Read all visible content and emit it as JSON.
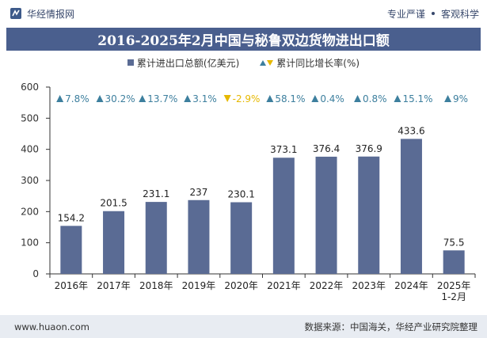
{
  "header": {
    "brand_name": "华经情报网",
    "tags": [
      "专业严谨",
      "客观科学"
    ]
  },
  "title": "2016-2025年2月中国与秘鲁双边货物进出口额",
  "legend": {
    "bars": "累计进出口总额(亿美元)",
    "growth": "累计同比增长率(%)"
  },
  "colors": {
    "bar": "#5a6b94",
    "up": "#3d7f9e",
    "down": "#e6b800",
    "title_bg": "#4a5f8e",
    "footer_bg": "#e8ecf2"
  },
  "chart_data": {
    "type": "bar",
    "title": "2016-2025年2月中国与秘鲁双边货物进出口额",
    "categories": [
      "2016年",
      "2017年",
      "2018年",
      "2019年",
      "2020年",
      "2021年",
      "2022年",
      "2023年",
      "2024年",
      "2025年\n1-2月"
    ],
    "series": [
      {
        "name": "累计进出口总额(亿美元)",
        "values": [
          154.2,
          201.5,
          231.1,
          237,
          230.1,
          373.1,
          376.4,
          376.9,
          433.6,
          75.5
        ],
        "labels": [
          "154.2",
          "201.5",
          "231.1",
          "237",
          "230.1",
          "373.1",
          "376.4",
          "376.9",
          "433.6",
          "75.5"
        ]
      },
      {
        "name": "累计同比增长率(%)",
        "values": [
          7.8,
          30.2,
          13.7,
          3.1,
          -2.9,
          58.1,
          0.4,
          0.8,
          15.1,
          9
        ],
        "labels": [
          "7.8%",
          "30.2%",
          "13.7%",
          "3.1%",
          "-2.9%",
          "58.1%",
          "0.4%",
          "0.8%",
          "15.1%",
          "9%"
        ]
      }
    ],
    "ylim": [
      0,
      600
    ],
    "yticks": [
      0,
      100,
      200,
      300,
      400,
      500,
      600
    ],
    "xlabel": "",
    "ylabel": "",
    "grid": false,
    "legend_position": "top-center"
  },
  "footer": {
    "website": "www.huaon.com",
    "source": "数据来源：中国海关，华经产业研究院整理"
  }
}
